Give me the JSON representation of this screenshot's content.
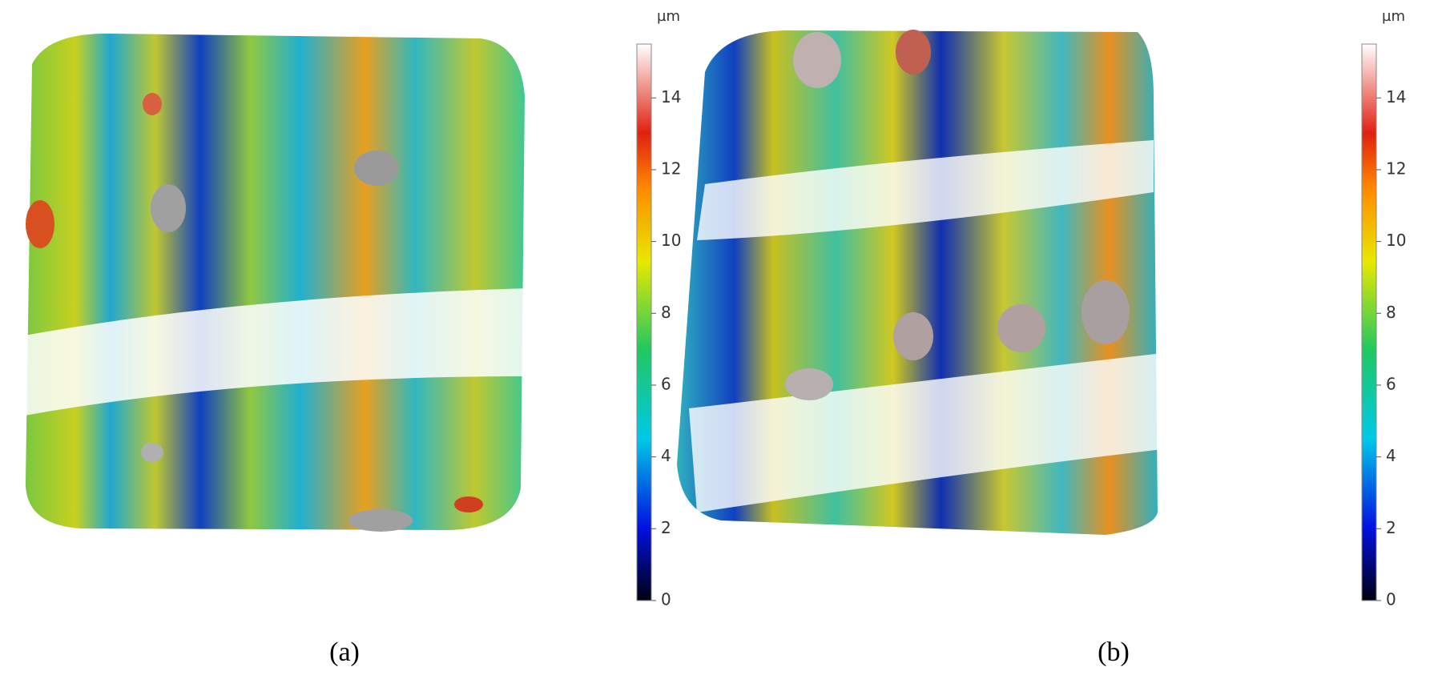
{
  "panels": [
    {
      "label": "(a)",
      "colorbar": {
        "unit": "µm",
        "range": [
          0,
          15.5
        ],
        "ticks": [
          0,
          2,
          4,
          6,
          8,
          10,
          12,
          14
        ]
      }
    },
    {
      "label": "(b)",
      "colorbar": {
        "unit": "µm",
        "range": [
          0,
          15.5
        ],
        "ticks": [
          0,
          2,
          4,
          6,
          8,
          10,
          12,
          14
        ]
      }
    }
  ]
}
